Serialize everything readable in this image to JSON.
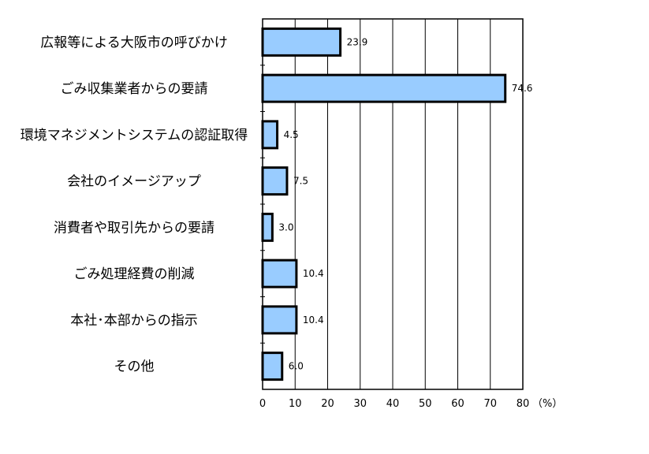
{
  "chart_data": {
    "type": "bar",
    "orientation": "horizontal",
    "categories": [
      "広報等による大阪市の呼びかけ",
      "ごみ収集業者からの要請",
      "環境マネジメントシステムの認証取得",
      "会社のイメージアップ",
      "消費者や取引先からの要請",
      "ごみ処理経費の削減",
      "本社･本部からの指示",
      "その他"
    ],
    "values": [
      23.9,
      74.6,
      4.5,
      7.5,
      3.0,
      10.4,
      10.4,
      6.0
    ],
    "value_labels": [
      "23.9",
      "74.6",
      "4.5",
      "7.5",
      "3.0",
      "10.4",
      "10.4",
      "6.0"
    ],
    "xlim": [
      0,
      80
    ],
    "xticks": [
      0,
      10,
      20,
      30,
      40,
      50,
      60,
      70,
      80
    ],
    "xtick_labels": [
      "0",
      "10",
      "20",
      "30",
      "40",
      "50",
      "60",
      "70",
      "80"
    ],
    "unit_label": "（%）",
    "grid": "vertical",
    "colors": {
      "bar_fill": "#99ccff",
      "bar_stroke": "#000000",
      "grid": "#000000"
    }
  }
}
